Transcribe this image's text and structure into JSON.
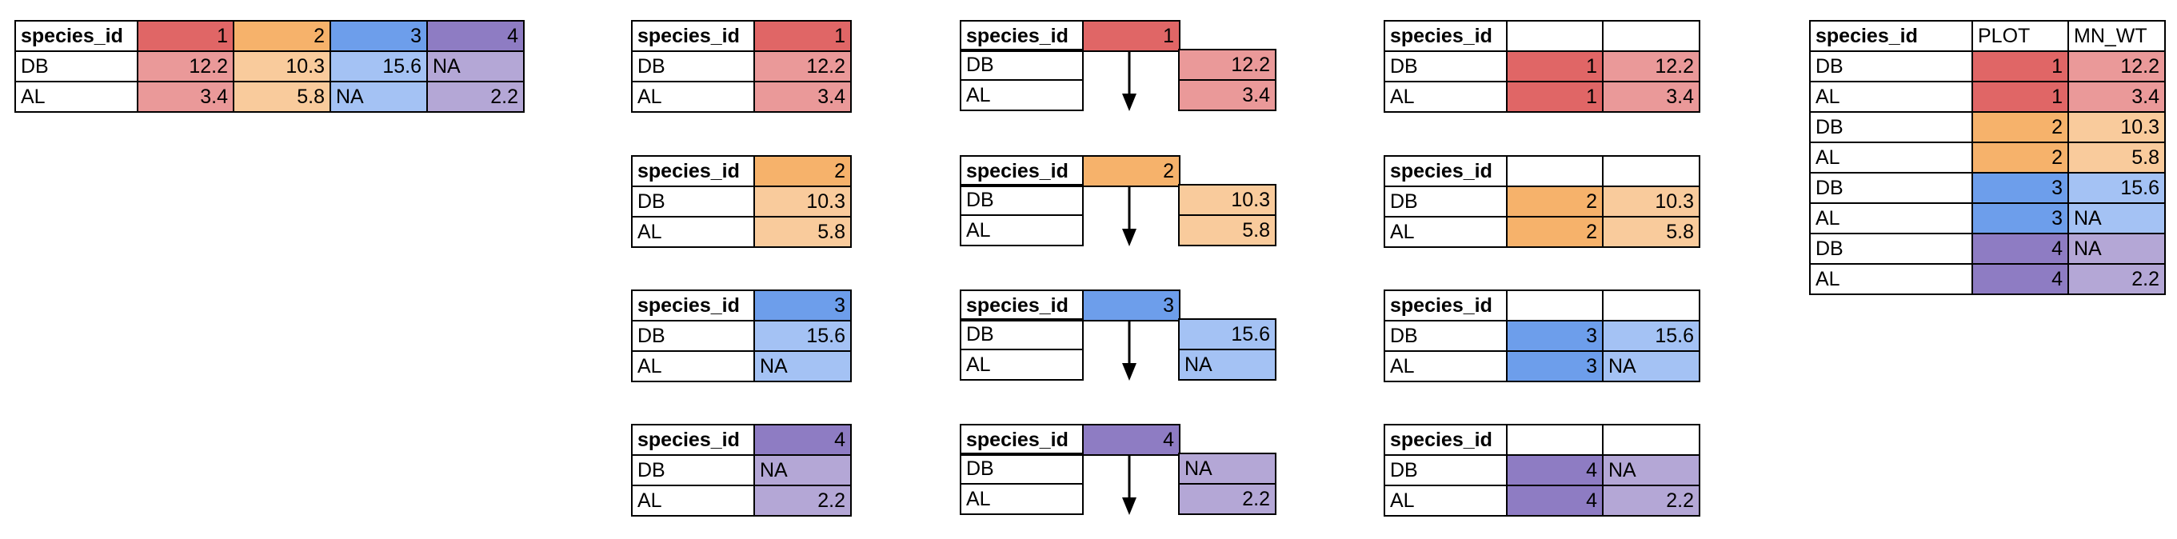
{
  "colors": {
    "dark": [
      "#E06666",
      "#F6B26B",
      "#6D9EEB",
      "#8E7CC3"
    ],
    "light": [
      "#EA9999",
      "#F9CB9C",
      "#A4C2F4",
      "#B4A7D6"
    ]
  },
  "header_label": "species_id",
  "wide": {
    "header": "species_id",
    "columns": [
      "1",
      "2",
      "3",
      "4"
    ],
    "rows": [
      {
        "species": "DB",
        "values": [
          "12.2",
          "10.3",
          "15.6",
          "NA"
        ]
      },
      {
        "species": "AL",
        "values": [
          "3.4",
          "5.8",
          "NA",
          "2.2"
        ]
      }
    ]
  },
  "groups": [
    {
      "plot": "1",
      "rows": [
        {
          "species": "DB",
          "wt": "12.2"
        },
        {
          "species": "AL",
          "wt": "3.4"
        }
      ]
    },
    {
      "plot": "2",
      "rows": [
        {
          "species": "DB",
          "wt": "10.3"
        },
        {
          "species": "AL",
          "wt": "5.8"
        }
      ]
    },
    {
      "plot": "3",
      "rows": [
        {
          "species": "DB",
          "wt": "15.6"
        },
        {
          "species": "AL",
          "wt": "NA"
        }
      ]
    },
    {
      "plot": "4",
      "rows": [
        {
          "species": "DB",
          "wt": "NA"
        },
        {
          "species": "AL",
          "wt": "2.2"
        }
      ]
    }
  ],
  "long": {
    "headers": [
      "species_id",
      "PLOT",
      "MN_WT"
    ],
    "rows": [
      {
        "species": "DB",
        "plot": "1",
        "wt": "12.2"
      },
      {
        "species": "AL",
        "plot": "1",
        "wt": "3.4"
      },
      {
        "species": "DB",
        "plot": "2",
        "wt": "10.3"
      },
      {
        "species": "AL",
        "plot": "2",
        "wt": "5.8"
      },
      {
        "species": "DB",
        "plot": "3",
        "wt": "15.6"
      },
      {
        "species": "AL",
        "plot": "3",
        "wt": "NA"
      },
      {
        "species": "DB",
        "plot": "4",
        "wt": "NA"
      },
      {
        "species": "AL",
        "plot": "4",
        "wt": "2.2"
      }
    ]
  }
}
